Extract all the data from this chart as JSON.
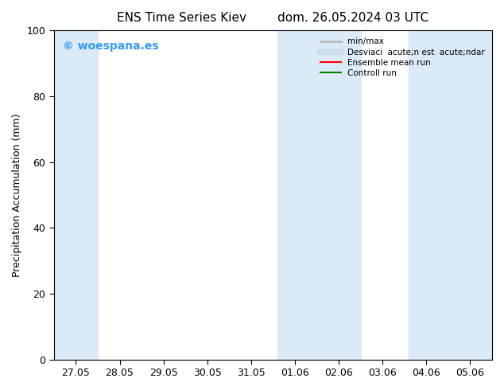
{
  "title": "ENS Time Series Kiev",
  "title2": "dom. 26.05.2024 03 UTC",
  "ylabel": "Precipitation Accumulation (mm)",
  "xlabel": "",
  "ylim": [
    0,
    100
  ],
  "yticks": [
    0,
    20,
    40,
    60,
    80,
    100
  ],
  "xtick_labels": [
    "27.05",
    "28.05",
    "29.05",
    "30.05",
    "31.05",
    "01.06",
    "02.06",
    "03.06",
    "04.06",
    "05.06"
  ],
  "background_color": "#ffffff",
  "plot_bg_color": "#ffffff",
  "shaded_band_color": "#daeaf7",
  "bands": [
    {
      "xmin": -0.5,
      "xmax": 0.5
    },
    {
      "xmin": 4.6,
      "xmax": 6.5
    },
    {
      "xmin": 7.6,
      "xmax": 9.5
    }
  ],
  "watermark_text": "© woespana.es",
  "watermark_color": "#3399ff",
  "legend_entries": [
    {
      "label": "min/max",
      "color": "#bbbbbb",
      "lw": 2
    },
    {
      "label": "Desviaci  acute;n est  acute;ndar",
      "color": "#ccddee",
      "lw": 6
    },
    {
      "label": "Ensemble mean run",
      "color": "#ff0000",
      "lw": 1.5
    },
    {
      "label": "Controll run",
      "color": "#008800",
      "lw": 1.5
    }
  ],
  "tick_fontsize": 9,
  "label_fontsize": 9,
  "title_fontsize": 11
}
